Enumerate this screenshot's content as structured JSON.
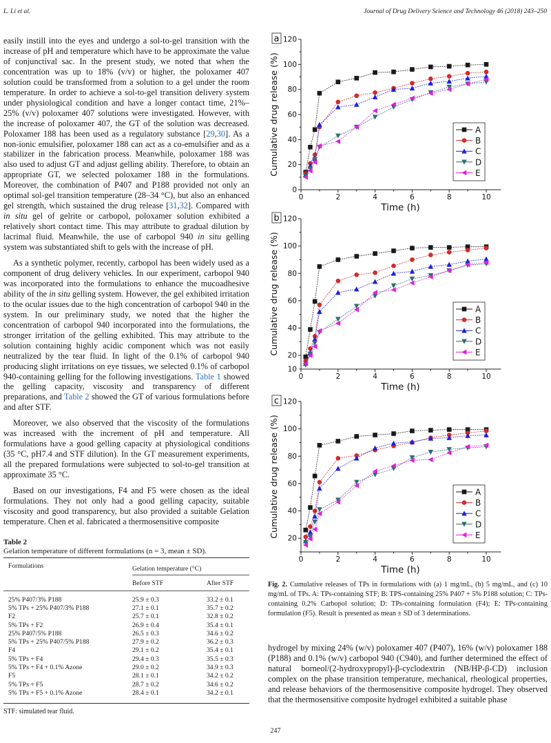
{
  "header": {
    "authors": "L. Li et al.",
    "journal": "Journal of Drug Delivery Science and Technology 46 (2018) 243–250"
  },
  "left": {
    "paragraphs": [
      [
        {
          "t": "easily instill into the eyes and undergo a sol-to-gel transition with the increase of pH and temperature which have to be approximate the value of conjunctival sac. In the present study, we noted that when the concentration was up to 18% (v/v) or higher, the poloxamer 407 solution could be transformed from a solution to a gel under the room temperature. In order to achieve a sol-to-gel transition delivery system under physiological condition and have a longer contact time, 21%–25% (v/v) poloxamer 407 solutions were investigated. However, with the increase of poloxamer 407, the GT of the solution was decreased. Poloxamer 188 has been used as a regulatory substance ["
        },
        {
          "l": "29"
        },
        {
          "t": ","
        },
        {
          "l": "30"
        },
        {
          "t": "]. As a non-ionic emulsifier, poloxamer 188 can act as a co-emulsifier and as a stabilizer in the fabrication process. Meanwhile, poloxamer 188 was also used to adjust GT and adjust gelling ability. Therefore, to obtain an appropriate GT, we selected poloxamer 188 in the formulations. Moreover, the combination of P407 and P188 provided not only an optimal sol-gel transition temperature (28–34 °C), but also an enhanced gel strength, which sustained the drug release ["
        },
        {
          "l": "31"
        },
        {
          "t": ","
        },
        {
          "l": "32"
        },
        {
          "t": "]. Compared with "
        },
        {
          "i": "in situ"
        },
        {
          "t": " gel of gelrite or carbopol, poloxamer solution exhibited a relatively short contact time. This may attribute to gradual dilution by lacrimal fluid. Meanwhile, the use of carbopol 940 "
        },
        {
          "i": "in situ"
        },
        {
          "t": " gelling system was substantiated shift to gels with the increase of pH."
        }
      ],
      [
        {
          "t": "As a synthetic polymer, recently, carbopol has been widely used as a component of drug delivery vehicles. In our experiment, carbopol 940 was incorporated into the formulations to enhance the mucoadhesive ability of the "
        },
        {
          "i": "in situ"
        },
        {
          "t": " gelling system. However, the gel exhibited irritation to the ocular issues due to the high concentration of carbopol 940 in the system. In our preliminary study, we noted that the higher the concentration of carbopol 940 incorporated into the formulations, the stronger irritation of the gelling exhibited. This may attribute to the solution containing highly acidic component which was not easily neutralized by the tear fluid. In light of the 0.1% of carbopol 940 producing slight irritations on eye tissues, we selected 0.1% of carbopol 940-containing gelling for the following investigations. "
        },
        {
          "l": "Table 1"
        },
        {
          "t": " showed the gelling capacity, viscosity and transparency of different preparations, and "
        },
        {
          "l": "Table 2"
        },
        {
          "t": " showed the GT of various formulations before and after STF."
        }
      ],
      [
        {
          "t": "Moreover, we also observed that the viscosity of the formulations was increased with the increment of pH and temperature. All formulations have a good gelling capacity at physiological conditions (35 °C, pH7.4 and STF dilution). In the GT measurement experiments, all the prepared formulations were subjected to sol-to-gel transition at approximate 35 °C."
        }
      ],
      [
        {
          "t": "Based on our investigations, F4 and F5 were chosen as the ideal formulations. They not only had a good gelling capacity, suitable viscosity and good transparency, but also provided a suitable Gelation temperature. Chen et al. fabricated a thermosensitive composite"
        }
      ]
    ]
  },
  "table2": {
    "label": "Table 2",
    "caption": "Gelation temperature of different formulations (n = 3, mean  ±  SD).",
    "col_formulations": "Formulations",
    "col_group": "Gelation temperature (°C)",
    "col_before": "Before STF",
    "col_after": "After STF",
    "rows": [
      [
        "25% P407/3% P188",
        "25.9 ± 0.3",
        "33.2 ± 0.1"
      ],
      [
        "5% TPs + 25% P407/3% P188",
        "27.1 ± 0.1",
        "35.7 ± 0.2"
      ],
      [
        "F2",
        "25.7 ± 0.1",
        "32.8 ± 0.2"
      ],
      [
        "5% TPs + F2",
        "26.9 ± 0.4",
        "35.4 ± 0.1"
      ],
      [
        "25% P407/5% P188",
        "26.5 ± 0.3",
        "34.6 ± 0.2"
      ],
      [
        "5% TPs + 25% P407/5% P188",
        "27.9 ± 0.2",
        "36.2 ± 0.3"
      ],
      [
        "F4",
        "29.1 ± 0.2",
        "35.4 ± 0.1"
      ],
      [
        "5% TPs + F4",
        "29.4 ± 0.3",
        "35.5 ± 0.3"
      ],
      [
        "5% TPs + F4 + 0.1% Azone",
        "29.0 ± 0.2",
        "34.9 ± 0.3"
      ],
      [
        "F5",
        "28.1 ± 0.1",
        "34.2 ± 0.2"
      ],
      [
        "5% TPs + F5",
        "28.7 ± 0.2",
        "34.6 ± 0.2"
      ],
      [
        "5% TPs + F5 + 0.1% Azone",
        "28.4 ± 0.1",
        "34.2 ± 0.1"
      ]
    ],
    "footnote": "STF: simulated tear fluid."
  },
  "chart_data": [
    {
      "type": "line",
      "panel": "a",
      "xlabel": "Time (h)",
      "ylabel": "Cumulative drug release (%)",
      "xlim": [
        0,
        10.8
      ],
      "ylim": [
        0,
        120
      ],
      "xticks": [
        0,
        2,
        4,
        6,
        8,
        10
      ],
      "yticks": [
        0,
        20,
        40,
        60,
        80,
        100,
        120
      ],
      "legend": "right",
      "x": [
        0.25,
        0.5,
        0.75,
        1,
        2,
        3,
        4,
        5,
        6,
        7,
        8,
        9,
        10
      ],
      "series": [
        {
          "name": "A",
          "color": "#1a1a1a",
          "marker": "square",
          "values": [
            14,
            34,
            48,
            77,
            86,
            89,
            93.5,
            94,
            96,
            98,
            98.5,
            99.5,
            100
          ]
        },
        {
          "name": "B",
          "color": "#d42a2a",
          "marker": "circle",
          "values": [
            13,
            21,
            28,
            50,
            70,
            75,
            77.5,
            81,
            85,
            88.5,
            90.5,
            93,
            94
          ]
        },
        {
          "name": "C",
          "color": "#1f1fe0",
          "marker": "triangle-up",
          "values": [
            12,
            19,
            25,
            52,
            66,
            68,
            74,
            80,
            81,
            85,
            86.5,
            89,
            90.5
          ]
        },
        {
          "name": "D",
          "color": "#2f6e6e",
          "marker": "triangle-down",
          "values": [
            11,
            17,
            24,
            34,
            43,
            50,
            58,
            66,
            72,
            77.5,
            82,
            84.5,
            86
          ]
        },
        {
          "name": "E",
          "color": "#e01ee0",
          "marker": "triangle-left",
          "values": [
            10,
            15,
            22,
            35,
            38.5,
            50,
            63,
            68,
            73,
            77,
            80,
            84.5,
            88
          ]
        }
      ]
    },
    {
      "type": "line",
      "panel": "b",
      "xlabel": "Time (h)",
      "ylabel": "Cumulative drug release (%)",
      "xlim": [
        0,
        10.8
      ],
      "ylim": [
        10,
        120
      ],
      "xticks": [
        0,
        2,
        4,
        6,
        8,
        10
      ],
      "yticks": [
        10,
        20,
        40,
        60,
        80,
        100,
        120
      ],
      "legend": "right",
      "x": [
        0.25,
        0.5,
        0.75,
        1,
        2,
        3,
        4,
        5,
        6,
        7,
        8,
        9,
        10
      ],
      "series": [
        {
          "name": "A",
          "color": "#1a1a1a",
          "marker": "square",
          "values": [
            19,
            39,
            59.5,
            85,
            90,
            92.5,
            94.5,
            96.5,
            98.5,
            99,
            99,
            99.5,
            99.5
          ]
        },
        {
          "name": "B",
          "color": "#d42a2a",
          "marker": "circle",
          "values": [
            16,
            25,
            34,
            57,
            74.5,
            79,
            80.5,
            85.5,
            90,
            93.5,
            95.5,
            97,
            98.5
          ]
        },
        {
          "name": "C",
          "color": "#1f1fe0",
          "marker": "triangle-up",
          "values": [
            14,
            22,
            32,
            52,
            66,
            68.5,
            74,
            80,
            81.5,
            85,
            86.5,
            89,
            90.5
          ]
        },
        {
          "name": "D",
          "color": "#2f6e6e",
          "marker": "triangle-down",
          "values": [
            13,
            21,
            29,
            37,
            46.5,
            56,
            63.5,
            71,
            76,
            78.5,
            82,
            86,
            87
          ]
        },
        {
          "name": "E",
          "color": "#e01ee0",
          "marker": "triangle-left",
          "values": [
            14,
            20,
            26.5,
            38,
            43.5,
            53.5,
            66,
            68,
            73,
            77.5,
            82,
            86.5,
            88
          ]
        }
      ]
    },
    {
      "type": "line",
      "panel": "c",
      "xlabel": "Time (h)",
      "ylabel": "Cumulative drug release (%)",
      "xlim": [
        0,
        10.8
      ],
      "ylim": [
        10,
        120
      ],
      "xticks": [
        0,
        2,
        4,
        6,
        8,
        10
      ],
      "yticks": [
        20,
        40,
        60,
        80,
        100,
        120
      ],
      "legend": "right",
      "x": [
        0.25,
        0.5,
        0.75,
        1,
        2,
        3,
        4,
        5,
        6,
        7,
        8,
        9,
        10
      ],
      "series": [
        {
          "name": "A",
          "color": "#1a1a1a",
          "marker": "square",
          "values": [
            26,
            42.5,
            65.5,
            88,
            91,
            94.5,
            95.5,
            96.5,
            98.5,
            99,
            99.5,
            99.5,
            99.5
          ]
        },
        {
          "name": "B",
          "color": "#d42a2a",
          "marker": "circle",
          "values": [
            21,
            28.5,
            40,
            61,
            78.5,
            80.5,
            84.5,
            87.5,
            90,
            93.5,
            95.5,
            97,
            98.5
          ]
        },
        {
          "name": "C",
          "color": "#1f1fe0",
          "marker": "triangle-up",
          "values": [
            18,
            24.5,
            36,
            56.5,
            71,
            78.5,
            86,
            89.5,
            90.5,
            93,
            93.5,
            95,
            95.5
          ]
        },
        {
          "name": "D",
          "color": "#2f6e6e",
          "marker": "triangle-down",
          "values": [
            17,
            21,
            32,
            41,
            48,
            61,
            66.5,
            71,
            79,
            83,
            85,
            86,
            87
          ]
        },
        {
          "name": "E",
          "color": "#e01ee0",
          "marker": "triangle-left",
          "values": [
            15,
            19.5,
            26.5,
            38,
            46.5,
            58.5,
            69,
            73,
            77,
            77.5,
            82.5,
            87,
            88
          ]
        }
      ]
    }
  ],
  "figure": {
    "label": "Fig. 2.",
    "caption": "Cumulative releases of TPs in formulations with (a) 1 mg/mL, (b) 5 mg/mL, and (c) 10 mg/mL of TPs. A: TPs-containing STF; B: TPS-containing 25% P407 + 5% P188 solution; C: TPs-containing 0.2% Carbopol solution; D: TPs-containing formulation (F4); E: TPs-containing formulation (F5). Result is presented as mean  ±  SD of 3 determinations."
  },
  "right": {
    "paragraph": "hydrogel by mixing 24% (w/v) poloxamer 407 (P407), 16% (w/v) poloxamer 188 (P188) and 0.1% (w/v) carbopol 940 (C940), and further determined the effect of natural borneol/(2-hydroxypropyl)-β-cyclodextrin (NB/HP-β-CD) inclusion complex on the phase transition temperature, mechanical, rheological properties, and release behaviors of the thermosensitive composite hydrogel. They observed that the thermosensitive composite hydrogel exhibited a suitable phase"
  },
  "page_number": "247"
}
